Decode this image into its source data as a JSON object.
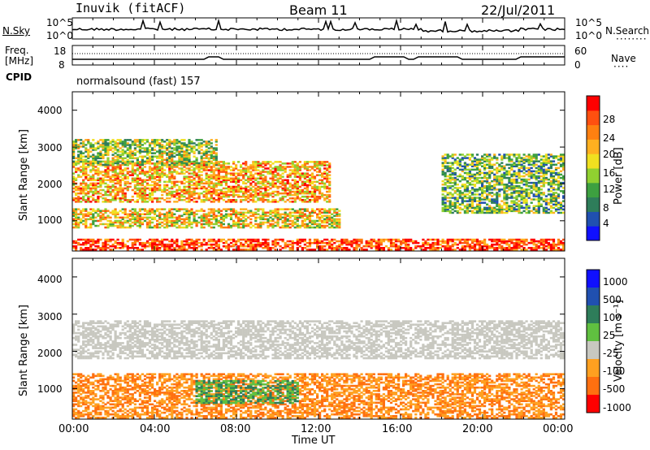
{
  "header": {
    "station": "Inuvik (fitACF)",
    "beam": "Beam 11",
    "date": "22/Jul/2011"
  },
  "noise_panel": {
    "left_label": "N.Sky",
    "left_ticks": [
      "10^5",
      "10^0"
    ],
    "right_ticks": [
      "10^5",
      "10^0"
    ],
    "right_label": "N.Search"
  },
  "freq_panel": {
    "left_label_1": "Freq.",
    "left_label_2": "[MHz]",
    "left_ticks": [
      "18",
      "8"
    ],
    "right_ticks": [
      "60",
      "0"
    ],
    "right_label": "Nave",
    "cpid_label": "CPID",
    "mode_text": "normalsound (fast) 157"
  },
  "colors": {
    "power_scale": [
      "#1010ff",
      "#2050b0",
      "#2e7d5a",
      "#3da040",
      "#90d030",
      "#f0e020",
      "#ffb020",
      "#ff8010",
      "#ff5010",
      "#ff0000"
    ],
    "velocity_scale": [
      "#1010ff",
      "#2050b0",
      "#2e7d5a",
      "#60c040",
      "#c8c8c0",
      "#ffa020",
      "#ff7010",
      "#ff0000"
    ]
  },
  "chart_data": [
    {
      "type": "heatmap",
      "panel": "power",
      "ylabel": "Slant Range [km]",
      "yticks": [
        "1000",
        "2000",
        "3000",
        "4000"
      ],
      "ylim": [
        180,
        4500
      ],
      "xlim": [
        "00:00",
        "24:00"
      ],
      "colorbar_label": "Power [dB]",
      "colorbar_ticks": [
        "4",
        "8",
        "12",
        "16",
        "20",
        "24",
        "28"
      ],
      "colorbar_range": [
        0,
        30
      ],
      "features": [
        {
          "band": "near range",
          "range_km": [
            200,
            500
          ],
          "time": [
            "00:00",
            "24:00"
          ],
          "level_db": 26
        },
        {
          "band": "lower",
          "range_km": [
            800,
            1300
          ],
          "time": [
            "00:00",
            "13:00"
          ],
          "level_db": 18
        },
        {
          "band": "middle",
          "range_km": [
            1500,
            2600
          ],
          "time": [
            "00:00",
            "12:30"
          ],
          "level_db": 20
        },
        {
          "band": "upper",
          "range_km": [
            2500,
            3200
          ],
          "time": [
            "00:00",
            "07:00"
          ],
          "level_db": 14
        },
        {
          "band": "evening",
          "range_km": [
            1200,
            2800
          ],
          "time": [
            "18:00",
            "24:00"
          ],
          "level_db": 12
        }
      ]
    },
    {
      "type": "heatmap",
      "panel": "velocity",
      "ylabel": "Slant Range [km]",
      "yticks": [
        "1000",
        "2000",
        "3000",
        "4000"
      ],
      "ylim": [
        180,
        4500
      ],
      "xlim": [
        "00:00",
        "24:00"
      ],
      "xticks": [
        "00:00",
        "04:00",
        "08:00",
        "12:00",
        "16:00",
        "20:00",
        "00:00"
      ],
      "xlabel": "Time UT",
      "colorbar_label": "Velocity [m s⁻¹]",
      "colorbar_ticks": [
        "1000",
        "500",
        "100",
        "25",
        "-25",
        "-100",
        "-500",
        "-1000"
      ],
      "features": [
        {
          "band": "ground scatter",
          "range_km": [
            1800,
            2800
          ],
          "time": [
            "00:00",
            "24:00"
          ],
          "velocity_ms": 0
        },
        {
          "band": "near range",
          "range_km": [
            200,
            1400
          ],
          "time": [
            "00:00",
            "24:00"
          ],
          "velocity_ms": -300
        },
        {
          "band": "mid",
          "range_km": [
            600,
            1200
          ],
          "time": [
            "06:00",
            "11:00"
          ],
          "velocity_ms": 200
        }
      ]
    }
  ]
}
